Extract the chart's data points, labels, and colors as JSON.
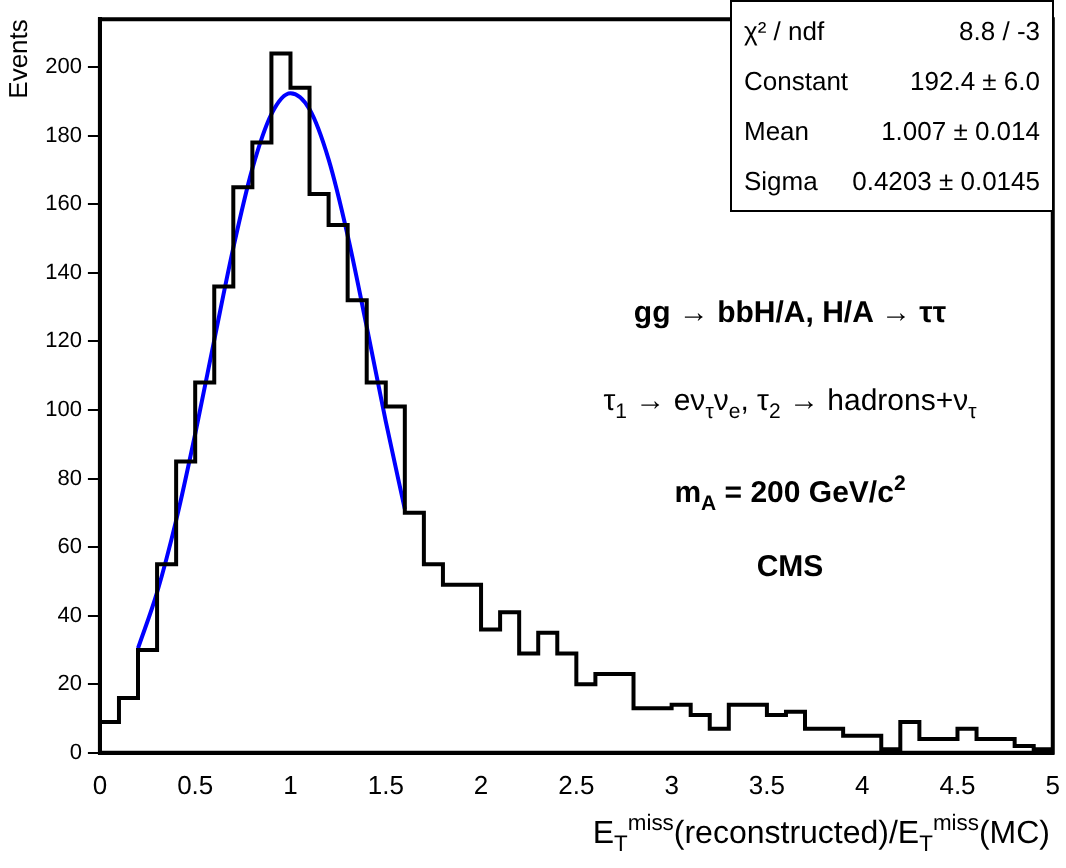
{
  "chart_data": {
    "type": "histogram",
    "xlabel": "E$_{T}$$^{miss}$(reconstructed)/E$_{T}$$^{miss}$(MC)",
    "ylabel": "Events",
    "xlim": [
      0,
      5
    ],
    "xticks": [
      0,
      0.5,
      1,
      1.5,
      2,
      2.5,
      3,
      3.5,
      4,
      4.5,
      5
    ],
    "ylim": [
      0,
      214
    ],
    "yticks": [
      0,
      20,
      40,
      60,
      80,
      100,
      120,
      140,
      160,
      180,
      200
    ],
    "grid": false,
    "legend": false,
    "series": [
      {
        "type": "histogram",
        "color": "#000000",
        "bins": [
          0,
          0.1,
          0.2,
          0.3,
          0.4,
          0.5,
          0.6,
          0.7,
          0.8,
          0.9,
          1,
          1.1,
          1.2,
          1.3,
          1.4,
          1.5,
          1.6,
          1.7,
          1.8,
          1.9,
          2,
          2.1,
          2.2,
          2.3,
          2.4,
          2.5,
          2.6,
          2.7,
          2.8,
          2.9,
          3,
          3.1,
          3.2,
          3.3,
          3.4,
          3.5,
          3.6,
          3.7,
          3.8,
          3.9,
          4,
          4.1,
          4.2,
          4.3,
          4.4,
          4.5,
          4.6,
          4.7,
          4.8,
          4.9,
          5
        ],
        "values": [
          9,
          16,
          30,
          55,
          85,
          108,
          136,
          165,
          178,
          204,
          194,
          163,
          154,
          132,
          108,
          101,
          70,
          55,
          49,
          49,
          36,
          41,
          29,
          35,
          29,
          20,
          23,
          23,
          13,
          13,
          14,
          11,
          7,
          14,
          14,
          11,
          12,
          7,
          7,
          5,
          5,
          1,
          9,
          4,
          4,
          7,
          4,
          4,
          2,
          1
        ]
      },
      {
        "type": "line",
        "color": "#0000ff",
        "x": [
          0.2,
          0.3,
          0.4,
          0.5,
          0.6,
          0.7,
          0.8,
          0.9,
          1.0,
          1.1,
          1.2,
          1.3,
          1.4,
          1.5,
          1.6
        ],
        "values": [
          30.5,
          46.8,
          67.8,
          93.0,
          120.4,
          147.3,
          170.4,
          186.3,
          192.4,
          187.7,
          173.1,
          150.9,
          124.3,
          96.7,
          71.1
        ]
      }
    ],
    "annotations": [
      "χ² / ndf",
      "8.8 / -3",
      "Constant",
      "192.4 ± 6.0",
      "Mean",
      "1.007 ± 0.014",
      "Sigma",
      "0.4203 ± 0.0145",
      "gg → bbH/A, H/A → ττ",
      "τ$_{1}$ → eν$_{τ}$ν$_{e}$, τ$_{2}$ → hadrons+ν$_{τ}$",
      "m$_{A}$ = 200 GeV/c$^{2}$",
      "CMS"
    ]
  }
}
